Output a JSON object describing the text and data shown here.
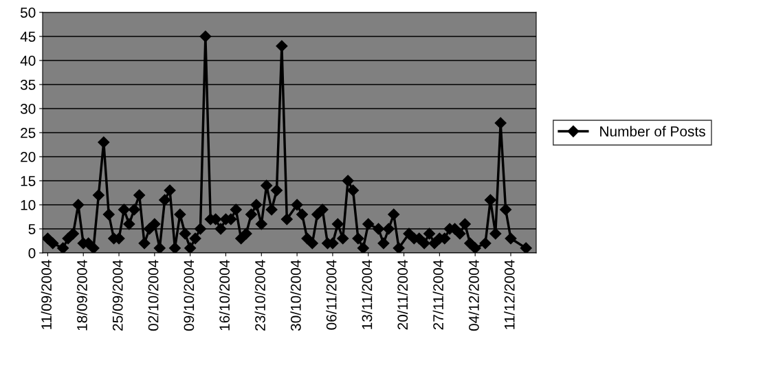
{
  "chart_data": {
    "type": "line",
    "x": [
      "2004-09-11",
      "2004-09-12",
      "2004-09-14",
      "2004-09-15",
      "2004-09-16",
      "2004-09-17",
      "2004-09-18",
      "2004-09-19",
      "2004-09-20",
      "2004-09-21",
      "2004-09-22",
      "2004-09-23",
      "2004-09-24",
      "2004-09-25",
      "2004-09-26",
      "2004-09-27",
      "2004-09-28",
      "2004-09-29",
      "2004-09-30",
      "2004-10-01",
      "2004-10-02",
      "2004-10-03",
      "2004-10-04",
      "2004-10-05",
      "2004-10-06",
      "2004-10-07",
      "2004-10-08",
      "2004-10-09",
      "2004-10-10",
      "2004-10-11",
      "2004-10-12",
      "2004-10-13",
      "2004-10-14",
      "2004-10-15",
      "2004-10-16",
      "2004-10-17",
      "2004-10-18",
      "2004-10-19",
      "2004-10-20",
      "2004-10-21",
      "2004-10-22",
      "2004-10-23",
      "2004-10-24",
      "2004-10-25",
      "2004-10-26",
      "2004-10-27",
      "2004-10-28",
      "2004-10-30",
      "2004-10-31",
      "2004-11-01",
      "2004-11-02",
      "2004-11-03",
      "2004-11-04",
      "2004-11-05",
      "2004-11-06",
      "2004-11-07",
      "2004-11-08",
      "2004-11-09",
      "2004-11-10",
      "2004-11-11",
      "2004-11-12",
      "2004-11-13",
      "2004-11-15",
      "2004-11-16",
      "2004-11-17",
      "2004-11-18",
      "2004-11-19",
      "2004-11-21",
      "2004-11-22",
      "2004-11-23",
      "2004-11-24",
      "2004-11-25",
      "2004-11-26",
      "2004-11-27",
      "2004-11-28",
      "2004-11-29",
      "2004-11-30",
      "2004-12-01",
      "2004-12-02",
      "2004-12-03",
      "2004-12-04",
      "2004-12-06",
      "2004-12-07",
      "2004-12-08",
      "2004-12-09",
      "2004-12-10",
      "2004-12-11",
      "2004-12-14"
    ],
    "series": [
      {
        "name": "Number of Posts",
        "color": "#000000",
        "values": [
          3,
          2,
          1,
          3,
          4,
          10,
          2,
          2,
          1,
          12,
          23,
          8,
          3,
          3,
          9,
          6,
          9,
          12,
          2,
          5,
          6,
          1,
          11,
          13,
          1,
          8,
          4,
          1,
          3,
          5,
          45,
          7,
          7,
          5,
          7,
          7,
          9,
          3,
          4,
          8,
          10,
          6,
          14,
          9,
          13,
          43,
          7,
          10,
          8,
          3,
          2,
          8,
          9,
          2,
          2,
          6,
          3,
          15,
          13,
          3,
          1,
          6,
          5,
          2,
          5,
          8,
          1,
          4,
          3,
          3,
          2,
          4,
          2,
          3,
          3,
          5,
          5,
          4,
          6,
          2,
          1,
          2,
          11,
          4,
          27,
          9,
          3,
          1
        ]
      }
    ],
    "xlim": [
      "2004-09-10",
      "2004-12-16"
    ],
    "xticks": [
      {
        "value": "2004-09-11",
        "label": "11/09/2004"
      },
      {
        "value": "2004-09-18",
        "label": "18/09/2004"
      },
      {
        "value": "2004-09-25",
        "label": "25/09/2004"
      },
      {
        "value": "2004-10-02",
        "label": "02/10/2004"
      },
      {
        "value": "2004-10-09",
        "label": "09/10/2004"
      },
      {
        "value": "2004-10-16",
        "label": "16/10/2004"
      },
      {
        "value": "2004-10-23",
        "label": "23/10/2004"
      },
      {
        "value": "2004-10-30",
        "label": "30/10/2004"
      },
      {
        "value": "2004-11-06",
        "label": "06/11/2004"
      },
      {
        "value": "2004-11-13",
        "label": "13/11/2004"
      },
      {
        "value": "2004-11-20",
        "label": "20/11/2004"
      },
      {
        "value": "2004-11-27",
        "label": "27/11/2004"
      },
      {
        "value": "2004-12-04",
        "label": "04/12/2004"
      },
      {
        "value": "2004-12-11",
        "label": "11/12/2004"
      }
    ],
    "ylim": [
      0,
      50
    ],
    "yticks": [
      0,
      5,
      10,
      15,
      20,
      25,
      30,
      35,
      40,
      45,
      50
    ],
    "grid": "y",
    "legend": "right",
    "marker": "diamond",
    "line_style": "solid"
  }
}
